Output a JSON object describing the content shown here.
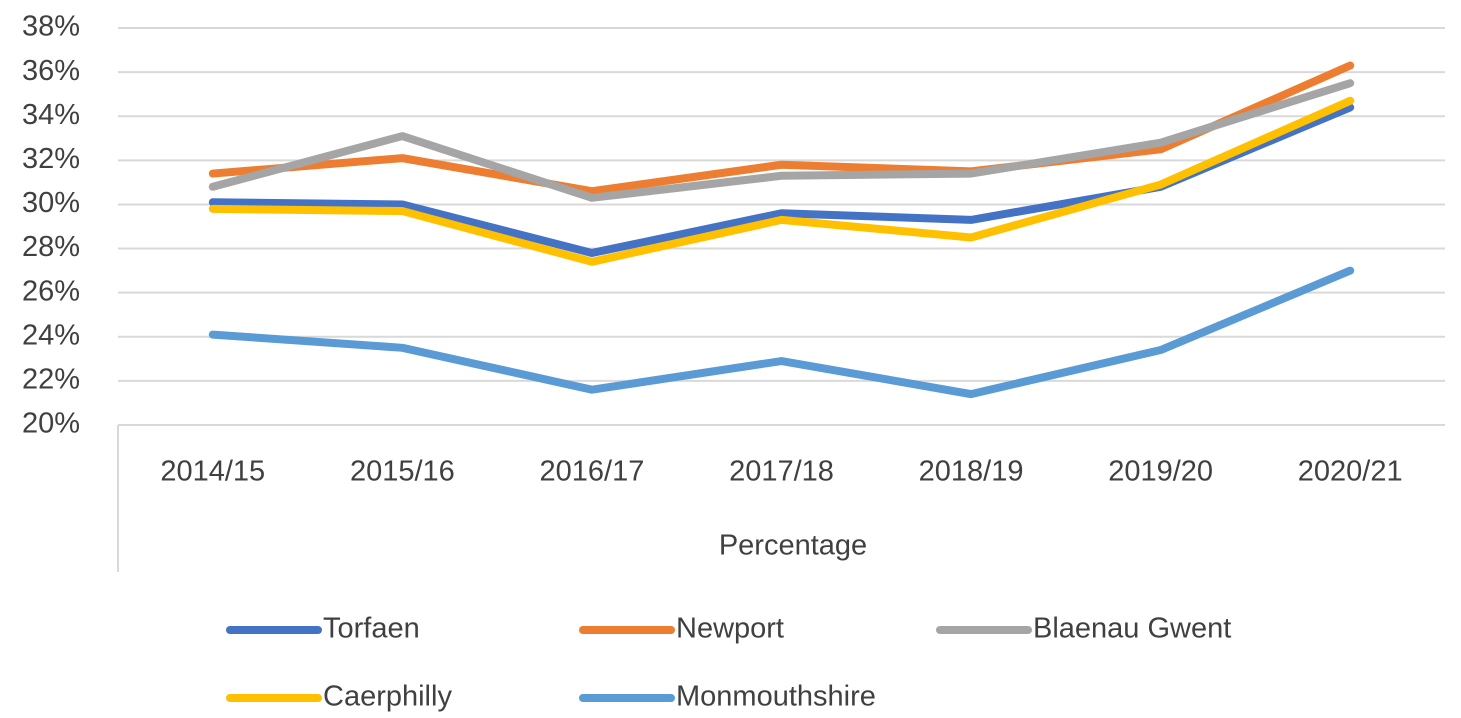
{
  "chart_data": {
    "type": "line",
    "x_label": "Percentage",
    "categories": [
      "2014/15",
      "2015/16",
      "2016/17",
      "2017/18",
      "2018/19",
      "2019/20",
      "2020/21"
    ],
    "series": [
      {
        "name": "Torfaen",
        "color": "#4472c4",
        "values": [
          30.1,
          30.0,
          27.8,
          29.6,
          29.3,
          30.8,
          34.4
        ]
      },
      {
        "name": "Newport",
        "color": "#ed7d31",
        "values": [
          31.4,
          32.1,
          30.6,
          31.8,
          31.5,
          32.5,
          36.3
        ]
      },
      {
        "name": "Blaenau Gwent",
        "color": "#a5a5a5",
        "values": [
          30.8,
          33.1,
          30.3,
          31.3,
          31.4,
          32.8,
          35.5
        ]
      },
      {
        "name": "Caerphilly",
        "color": "#ffc000",
        "values": [
          29.8,
          29.7,
          27.4,
          29.3,
          28.5,
          30.9,
          34.7
        ]
      },
      {
        "name": "Monmouthshire",
        "color": "#5b9bd5",
        "values": [
          24.1,
          23.5,
          21.6,
          22.9,
          21.4,
          23.4,
          27.0
        ]
      }
    ],
    "ylim": [
      20,
      38
    ],
    "yticks": [
      {
        "value": 20,
        "label": "20%"
      },
      {
        "value": 22,
        "label": "22%"
      },
      {
        "value": 24,
        "label": "24%"
      },
      {
        "value": 26,
        "label": "26%"
      },
      {
        "value": 28,
        "label": "28%"
      },
      {
        "value": 30,
        "label": "30%"
      },
      {
        "value": 32,
        "label": "32%"
      },
      {
        "value": 34,
        "label": "34%"
      },
      {
        "value": 36,
        "label": "36%"
      },
      {
        "value": 38,
        "label": "38%"
      }
    ],
    "grid": true
  }
}
